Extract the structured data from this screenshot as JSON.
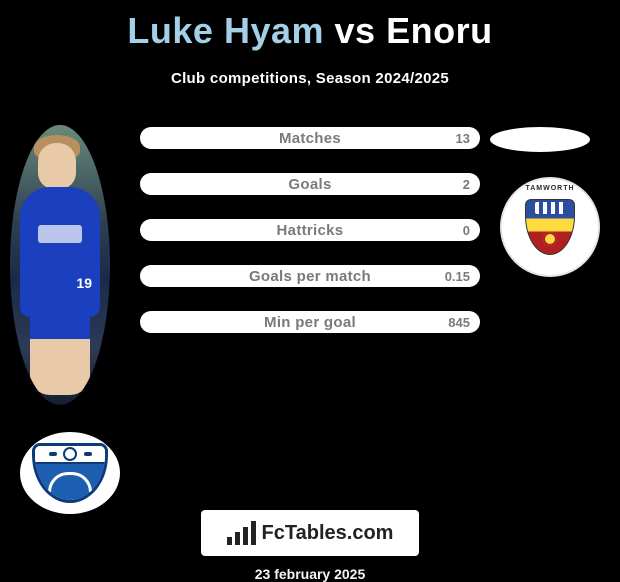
{
  "title": {
    "player1": "Luke Hyam",
    "vs": "vs",
    "player2": "Enoru"
  },
  "subtitle": "Club competitions, Season 2024/2025",
  "stats": [
    {
      "label": "Matches",
      "value": "13"
    },
    {
      "label": "Goals",
      "value": "2"
    },
    {
      "label": "Hattricks",
      "value": "0"
    },
    {
      "label": "Goals per match",
      "value": "0.15"
    },
    {
      "label": "Min per goal",
      "value": "845"
    }
  ],
  "crest_right": {
    "arc_text": "TAMWORTH",
    "shield_colors": {
      "top": "#2b4ea0",
      "mid": "#ffd940",
      "bottom": "#b02020"
    }
  },
  "crest_left": {
    "primary": "#0d3a7a",
    "secondary": "#1c5fb0"
  },
  "player_left": {
    "shirt_color": "#1a3fbf",
    "number": "19"
  },
  "footer": {
    "site_fc": "Fc",
    "site_rest": "Tables.com",
    "date": "23 february 2025"
  },
  "colors": {
    "background": "#000000",
    "stat_bar_bg": "#ffffff",
    "stat_text": "#7a7a7a",
    "title_p1": "#a3d0e8",
    "title_rest": "#ffffff"
  }
}
